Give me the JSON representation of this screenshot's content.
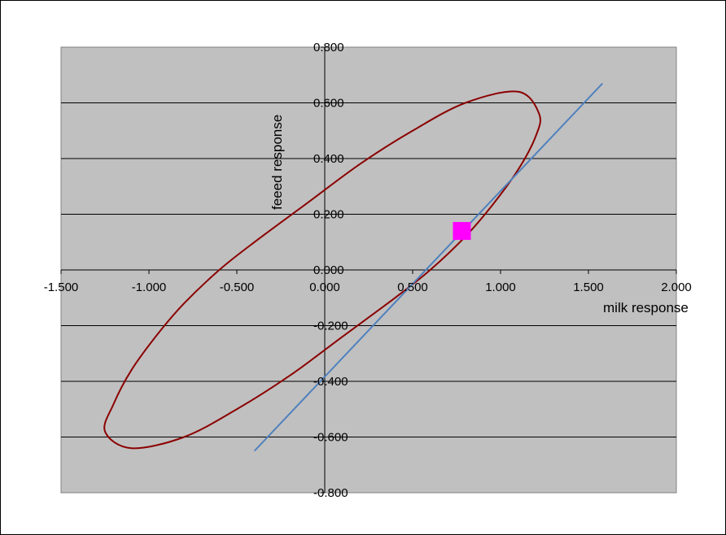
{
  "chart_data": {
    "type": "scatter",
    "title": "",
    "xlabel": "milk response",
    "ylabel": "feeed response",
    "xlim": [
      -1.5,
      2.0
    ],
    "ylim": [
      -0.8,
      0.8
    ],
    "x_ticks": [
      -1.5,
      -1.0,
      -0.5,
      0.0,
      0.5,
      1.0,
      1.5,
      2.0
    ],
    "y_ticks": [
      -0.8,
      -0.6,
      -0.4,
      -0.2,
      0.0,
      0.2,
      0.4,
      0.6,
      0.8
    ],
    "x_tick_labels": [
      "-1.500",
      "-1.000",
      "-0.500",
      "0.000",
      "0.500",
      "1.000",
      "1.500",
      "2.000"
    ],
    "y_tick_labels": [
      "-0.800",
      "-0.600",
      "-0.400",
      "-0.200",
      "0.000",
      "0.200",
      "0.400",
      "0.600",
      "0.800"
    ],
    "grid": "horizontal",
    "legend": "none",
    "plot_background": "#c0c0c0",
    "series": [
      {
        "kind": "ellipse",
        "color": "#8b0000",
        "points": [
          [
            1.22,
            0.56
          ],
          [
            1.2,
            0.48
          ],
          [
            1.1,
            0.36
          ],
          [
            0.95,
            0.23
          ],
          [
            0.8,
            0.12
          ],
          [
            0.6,
            0.0
          ],
          [
            0.4,
            -0.1
          ],
          [
            0.1,
            -0.24
          ],
          [
            -0.2,
            -0.38
          ],
          [
            -0.5,
            -0.5
          ],
          [
            -0.8,
            -0.6
          ],
          [
            -1.1,
            -0.64
          ],
          [
            -1.25,
            -0.58
          ],
          [
            -1.2,
            -0.48
          ],
          [
            -1.1,
            -0.36
          ],
          [
            -0.95,
            -0.23
          ],
          [
            -0.8,
            -0.12
          ],
          [
            -0.6,
            0.0
          ],
          [
            -0.4,
            0.1
          ],
          [
            -0.1,
            0.24
          ],
          [
            0.2,
            0.38
          ],
          [
            0.5,
            0.5
          ],
          [
            0.8,
            0.6
          ],
          [
            1.1,
            0.64
          ]
        ]
      },
      {
        "kind": "line",
        "color": "#4f81bd",
        "points": [
          [
            -0.4,
            -0.65
          ],
          [
            1.58,
            0.67
          ]
        ]
      },
      {
        "kind": "marker",
        "color": "#ff00ff",
        "points": [
          [
            0.78,
            0.14
          ]
        ]
      }
    ]
  }
}
